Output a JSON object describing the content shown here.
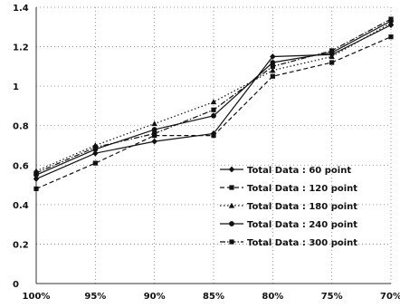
{
  "chart_data": {
    "type": "line",
    "title": "",
    "xlabel": "",
    "ylabel": "",
    "categories": [
      "100%",
      "95%",
      "90%",
      "85%",
      "80%",
      "75%",
      "70%"
    ],
    "y_ticks": [
      "0",
      "0.2",
      "0.4",
      "0.6",
      "0.8",
      "1",
      "1.2",
      "1.4"
    ],
    "ylim": [
      0,
      1.4
    ],
    "grid": true,
    "legend_position": "lower-right",
    "series": [
      {
        "name": "Total Data : 60 point",
        "values": [
          0.53,
          0.66,
          0.72,
          0.76,
          1.15,
          1.16,
          1.31
        ],
        "style": "solid",
        "marker": "diamond",
        "color": "#111111"
      },
      {
        "name": "Total Data : 120 point",
        "values": [
          0.48,
          0.61,
          0.75,
          0.75,
          1.05,
          1.12,
          1.25
        ],
        "style": "dashed",
        "marker": "square",
        "color": "#111111"
      },
      {
        "name": "Total Data : 180 point",
        "values": [
          0.57,
          0.7,
          0.81,
          0.92,
          1.08,
          1.15,
          1.32
        ],
        "style": "dotted",
        "marker": "triangle",
        "color": "#111111"
      },
      {
        "name": "Total Data : 240 point",
        "values": [
          0.55,
          0.68,
          0.78,
          0.85,
          1.12,
          1.17,
          1.33
        ],
        "style": "solid",
        "marker": "circle",
        "color": "#111111"
      },
      {
        "name": "Total Data : 300 point",
        "values": [
          0.56,
          0.69,
          0.76,
          0.88,
          1.1,
          1.18,
          1.34
        ],
        "style": "dashdot",
        "marker": "square",
        "color": "#111111"
      }
    ]
  }
}
